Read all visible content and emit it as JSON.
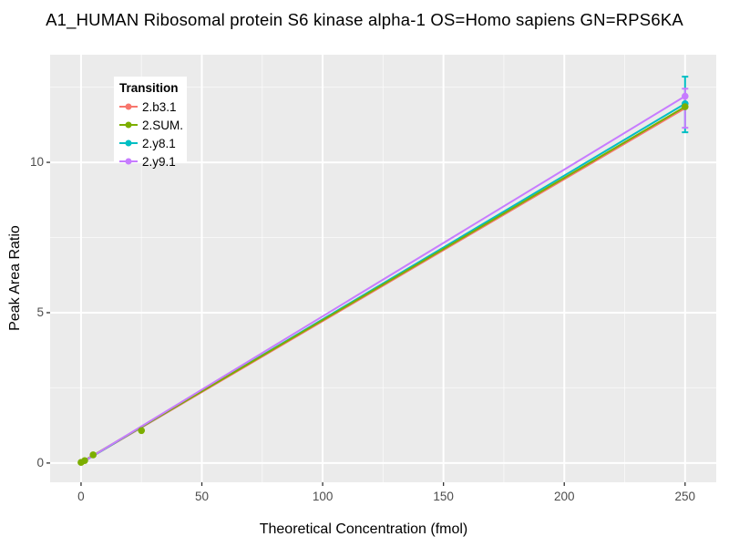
{
  "title": "A1_HUMAN Ribosomal protein S6 kinase alpha-1 OS=Homo sapiens GN=RPS6KA",
  "style": {
    "panel_bg": "#EBEBEB",
    "grid_major": "#FFFFFF",
    "grid_minor": "#F5F5F5",
    "tick_text": "#4D4D4D",
    "tick_mark": "#333333"
  },
  "legend": {
    "title": "Transition",
    "items": [
      {
        "label": "2.b3.1",
        "color": "#F8766D"
      },
      {
        "label": "2.SUM.",
        "color": "#7CAE00"
      },
      {
        "label": "2.y8.1",
        "color": "#00BFC4"
      },
      {
        "label": "2.y9.1",
        "color": "#C77CFF"
      }
    ]
  },
  "chart_data": {
    "type": "line",
    "title": "A1_HUMAN Ribosomal protein S6 kinase alpha-1 OS=Homo sapiens GN=RPS6KA",
    "xlabel": "Theoretical Concentration (fmol)",
    "ylabel": "Peak Area Ratio",
    "xlim": [
      -12.8,
      262.9
    ],
    "ylim": [
      -0.64,
      13.58
    ],
    "x_ticks": [
      0,
      50,
      100,
      150,
      200,
      250
    ],
    "y_ticks": [
      0,
      5,
      10
    ],
    "x_minor_ticks": [
      25,
      75,
      125,
      175,
      225
    ],
    "y_minor_ticks": [
      2.5,
      7.5,
      12.5
    ],
    "grid": true,
    "legend_position": "top-left-inside",
    "legend_title": "Transition",
    "series": [
      {
        "name": "2.b3.1",
        "color": "#F8766D",
        "line": {
          "x": [
            0,
            250
          ],
          "y": [
            0.0,
            11.8
          ]
        },
        "points": [],
        "note": "hidden beneath 2.SUM. and 2.y8.1 lines"
      },
      {
        "name": "2.y8.1",
        "color": "#00BFC4",
        "line": {
          "x": [
            0,
            250
          ],
          "y": [
            0.0,
            11.95
          ]
        },
        "points": [
          [
            250,
            11.95
          ]
        ],
        "errorbar": {
          "x": 250,
          "ymin": 11.0,
          "ymax": 12.85
        }
      },
      {
        "name": "2.SUM.",
        "color": "#7CAE00",
        "line": {
          "x": [
            0,
            250
          ],
          "y": [
            0.02,
            11.85
          ]
        },
        "points": [
          [
            0,
            0.02
          ],
          [
            1.5,
            0.08
          ],
          [
            5,
            0.27
          ],
          [
            25,
            1.08
          ],
          [
            250,
            11.85
          ]
        ]
      },
      {
        "name": "2.y9.1",
        "color": "#C77CFF",
        "line": {
          "x": [
            0,
            250
          ],
          "y": [
            0.0,
            12.2
          ]
        },
        "points": [
          [
            250,
            12.2
          ]
        ],
        "errorbar": {
          "x": 250,
          "ymin": 11.15,
          "ymax": 12.45
        }
      }
    ]
  }
}
